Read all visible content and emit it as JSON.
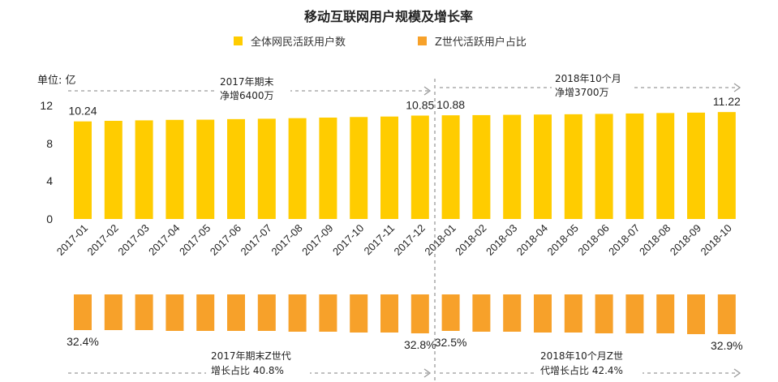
{
  "colors": {
    "users_bar": "#ffcc00",
    "gen_z_bar": "#f7a12a",
    "dashed_line": "#9a9a9a",
    "text": "#222222"
  },
  "chart_data": {
    "type": "bar",
    "title": "移动互联网用户规模及增长率",
    "legend_position": "top",
    "categories": [
      "2017-01",
      "2017-02",
      "2017-03",
      "2017-04",
      "2017-05",
      "2017-06",
      "2017-07",
      "2017-08",
      "2017-09",
      "2017-10",
      "2017-11",
      "2017-12",
      "2018-01",
      "2018-02",
      "2018-03",
      "2018-04",
      "2018-05",
      "2018-06",
      "2018-07",
      "2018-08",
      "2018-09",
      "2018-10"
    ],
    "series": [
      {
        "name": "全体网民活跃用户数",
        "unit_label": "单位: 亿",
        "values": [
          10.24,
          10.3,
          10.35,
          10.4,
          10.42,
          10.48,
          10.52,
          10.58,
          10.64,
          10.7,
          10.75,
          10.85,
          10.88,
          10.9,
          10.93,
          10.96,
          10.99,
          11.03,
          11.07,
          11.12,
          11.16,
          11.22
        ],
        "ylim": [
          0,
          12
        ],
        "yticks": [
          "0",
          "4",
          "8",
          "12"
        ],
        "labels": [
          {
            "index": 0,
            "text": "10.24"
          },
          {
            "index": 11,
            "text": "10.85"
          },
          {
            "index": 12,
            "text": "10.88"
          },
          {
            "index": 21,
            "text": "11.22"
          }
        ]
      },
      {
        "name": "Z世代活跃用户占比",
        "unit": "%",
        "values": [
          32.4,
          32.4,
          32.4,
          32.5,
          32.5,
          32.5,
          32.5,
          32.6,
          32.6,
          32.7,
          32.7,
          32.8,
          32.5,
          32.6,
          32.6,
          32.7,
          32.7,
          32.8,
          32.8,
          32.8,
          32.9,
          32.9
        ],
        "labels": [
          {
            "index": 0,
            "text": "32.4%"
          },
          {
            "index": 11,
            "text": "32.8%"
          },
          {
            "index": 12,
            "text": "32.5%"
          },
          {
            "index": 21,
            "text": "32.9%"
          }
        ]
      }
    ],
    "annotations": {
      "users_2017": [
        "2017年期末",
        "净增6400万"
      ],
      "users_2018": [
        "2018年10个月",
        "净增3700万"
      ],
      "genz_2017": [
        "2017年期末Z世代",
        "增长占比 40.8%"
      ],
      "genz_2018": [
        "2018年10个月Z世",
        "代增长占比 42.4%"
      ]
    }
  }
}
